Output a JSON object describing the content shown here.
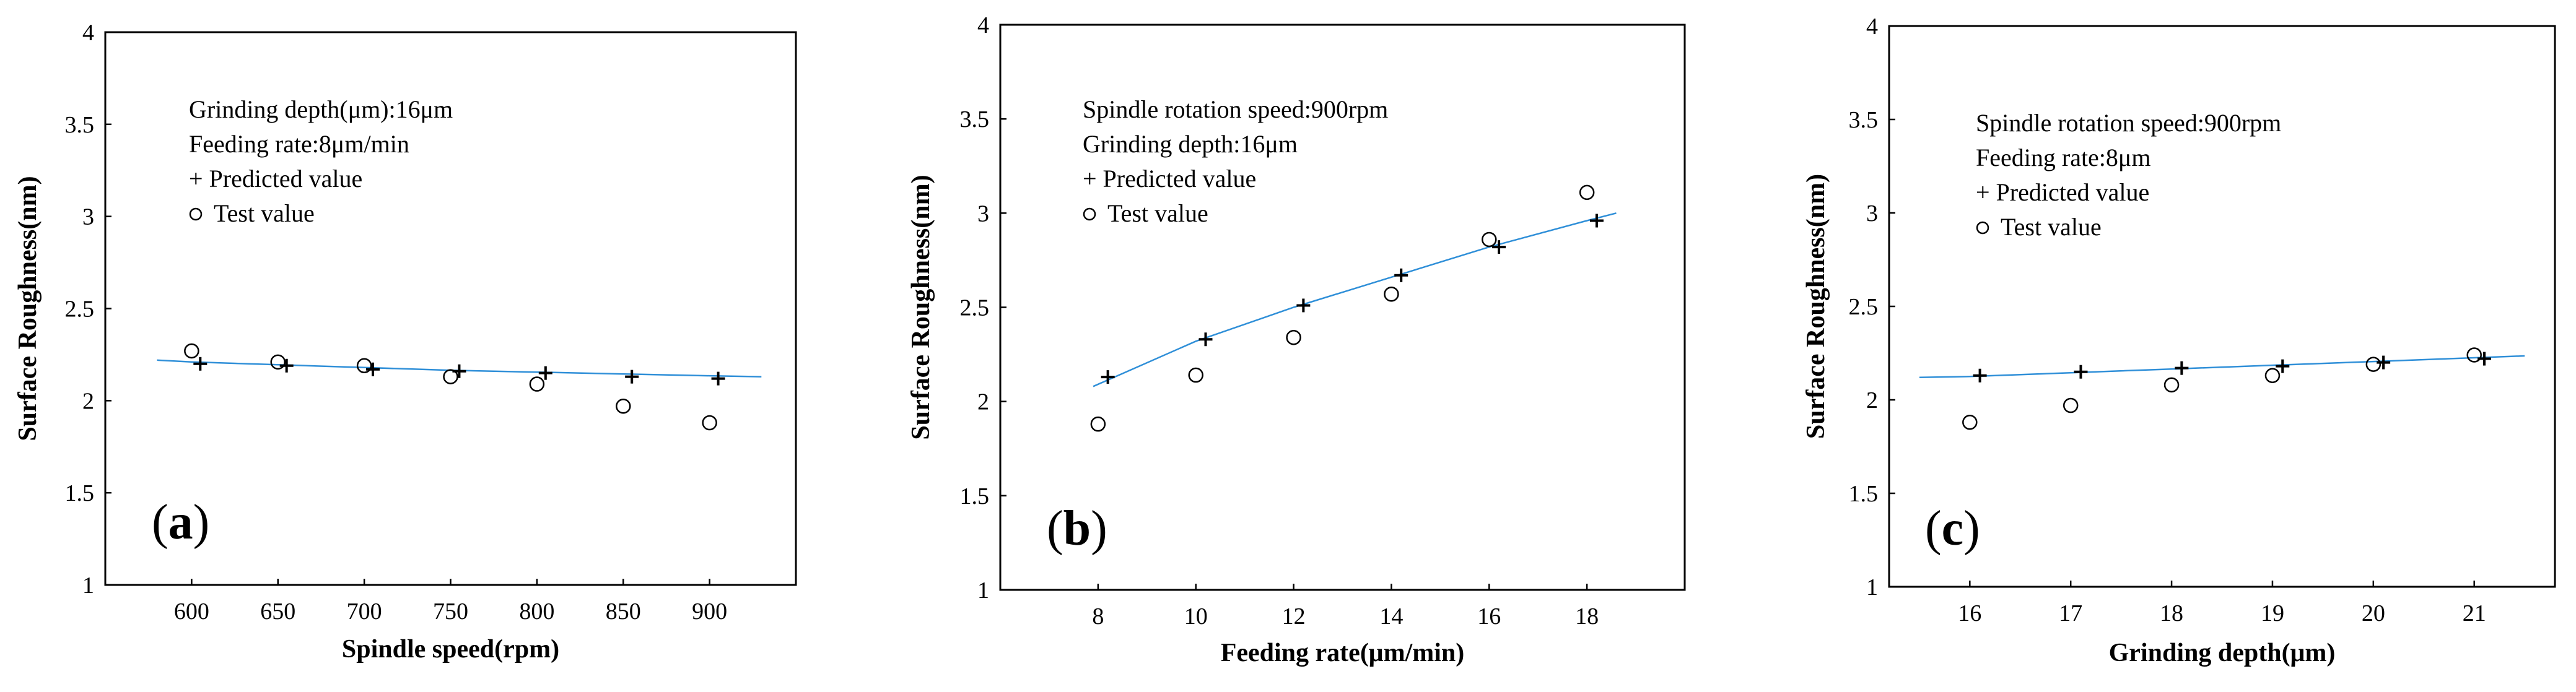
{
  "colors": {
    "fit_line": "#2f8fd8",
    "marker": "#000000"
  },
  "chart_data": [
    {
      "type": "scatter",
      "panel_label": "a",
      "xlabel": "Spindle speed(rpm)",
      "ylabel": "Surface Roughness(nm)",
      "xlim": [
        550,
        950
      ],
      "ylim": [
        1,
        4
      ],
      "xticks": [
        600,
        650,
        700,
        750,
        800,
        850,
        900
      ],
      "yticks": [
        1,
        1.5,
        2,
        2.5,
        3,
        3.5,
        4
      ],
      "annotations": [
        "Grinding depth(μm):16μm",
        "Feeding rate:8μm/min"
      ],
      "legend": {
        "predicted": "+ Predicted value",
        "test": "Test value",
        "position": "top-left"
      },
      "fit": {
        "x": [
          580,
          600,
          650,
          700,
          750,
          800,
          850,
          900,
          930
        ],
        "y": [
          2.22,
          2.21,
          2.195,
          2.18,
          2.165,
          2.155,
          2.145,
          2.135,
          2.13
        ]
      },
      "series": [
        {
          "name": "Predicted value",
          "x": [
            605,
            655,
            705,
            755,
            805,
            855,
            905
          ],
          "y": [
            2.2,
            2.19,
            2.17,
            2.16,
            2.15,
            2.13,
            2.12
          ]
        },
        {
          "name": "Test value",
          "x": [
            600,
            650,
            700,
            750,
            800,
            850,
            900
          ],
          "y": [
            2.27,
            2.21,
            2.19,
            2.13,
            2.09,
            1.97,
            1.88
          ]
        }
      ]
    },
    {
      "type": "scatter",
      "panel_label": "b",
      "xlabel": "Feeding rate(μm/min)",
      "ylabel": "Surface Roughness(nm)",
      "xlim": [
        6,
        20
      ],
      "ylim": [
        1,
        4
      ],
      "xticks": [
        8,
        10,
        12,
        14,
        16,
        18
      ],
      "yticks": [
        1,
        1.5,
        2,
        2.5,
        3,
        3.5,
        4
      ],
      "annotations": [
        "Spindle rotation speed:900rpm",
        "Grinding depth:16μm"
      ],
      "legend": {
        "predicted": "+ Predicted value",
        "test": "Test value",
        "position": "top-left"
      },
      "fit": {
        "x": [
          7.9,
          10,
          12,
          14,
          16,
          18,
          18.6
        ],
        "y": [
          2.08,
          2.32,
          2.5,
          2.66,
          2.82,
          2.96,
          3.0
        ]
      },
      "series": [
        {
          "name": "Predicted value",
          "x": [
            8.2,
            10.2,
            12.2,
            14.2,
            16.2,
            18.2
          ],
          "y": [
            2.13,
            2.33,
            2.51,
            2.67,
            2.82,
            2.96
          ]
        },
        {
          "name": "Test value",
          "x": [
            8,
            10,
            12,
            14,
            16,
            18
          ],
          "y": [
            1.88,
            2.14,
            2.34,
            2.57,
            2.86,
            3.11
          ]
        }
      ]
    },
    {
      "type": "scatter",
      "panel_label": "c",
      "xlabel": "Grinding depth(μm)",
      "ylabel": "Surface Roughness(nm)",
      "xlim": [
        15.2,
        21.8
      ],
      "ylim": [
        1,
        4
      ],
      "xticks": [
        16,
        17,
        18,
        19,
        20,
        21
      ],
      "yticks": [
        1,
        1.5,
        2,
        2.5,
        3,
        3.5,
        4
      ],
      "annotations": [
        "Spindle rotation speed:900rpm",
        "Feeding rate:8μm"
      ],
      "legend": {
        "predicted": "+ Predicted value",
        "test": "Test value",
        "position": "top-left"
      },
      "fit": {
        "x": [
          15.5,
          16,
          17,
          18,
          19,
          20,
          21,
          21.5
        ],
        "y": [
          2.12,
          2.125,
          2.145,
          2.165,
          2.185,
          2.205,
          2.225,
          2.235
        ]
      },
      "series": [
        {
          "name": "Predicted value",
          "x": [
            16.1,
            17.1,
            18.1,
            19.1,
            20.1,
            21.1
          ],
          "y": [
            2.13,
            2.15,
            2.17,
            2.18,
            2.2,
            2.22
          ]
        },
        {
          "name": "Test value",
          "x": [
            16,
            17,
            18,
            19,
            20,
            21
          ],
          "y": [
            1.88,
            1.97,
            2.08,
            2.13,
            2.19,
            2.24
          ]
        }
      ]
    }
  ]
}
